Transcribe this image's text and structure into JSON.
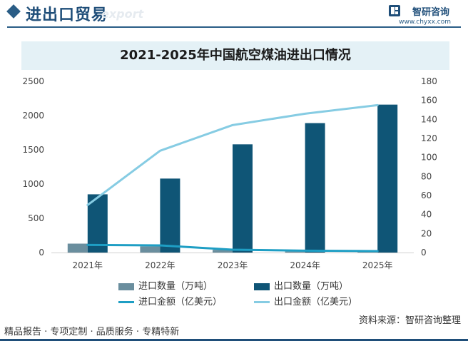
{
  "header": {
    "title": "进出口贸易",
    "watermark": "export",
    "brand_name": "智研咨询",
    "brand_url": "www.chyxx.com"
  },
  "chart_data": {
    "type": "bar",
    "title": "2021-2025年中国航空煤油进出口情况",
    "categories": [
      "2021年",
      "2022年",
      "2023年",
      "2024年",
      "2025年"
    ],
    "y_left": {
      "ticks": [
        0,
        500,
        1000,
        1500,
        2000,
        2500
      ],
      "ylim": [
        0,
        2500
      ]
    },
    "y_right": {
      "ticks": [
        0,
        20,
        40,
        60,
        80,
        100,
        120,
        140,
        160,
        180
      ],
      "ylim": [
        0,
        180
      ]
    },
    "series": [
      {
        "name": "进口数量（万吨）",
        "type": "bar",
        "axis": "left",
        "color": "#6a8e9e",
        "values": [
          130,
          90,
          40,
          15,
          10
        ]
      },
      {
        "name": "出口数量（万吨）",
        "type": "bar",
        "axis": "left",
        "color": "#0f5576",
        "values": [
          850,
          1080,
          1580,
          1890,
          2160
        ]
      },
      {
        "name": "进口金额（亿美元）",
        "type": "line",
        "axis": "right",
        "color": "#1e9ec4",
        "values": [
          8,
          7.5,
          3,
          2,
          1.5
        ]
      },
      {
        "name": "出口金额（亿美元）",
        "type": "line",
        "axis": "right",
        "color": "#86cce3",
        "values": [
          50,
          107,
          134,
          146,
          155
        ]
      }
    ]
  },
  "source": "资料来源：智研咨询整理",
  "footer": {
    "text": "精品报告 · 专项定制 · 品质服务 · 专精特新"
  }
}
